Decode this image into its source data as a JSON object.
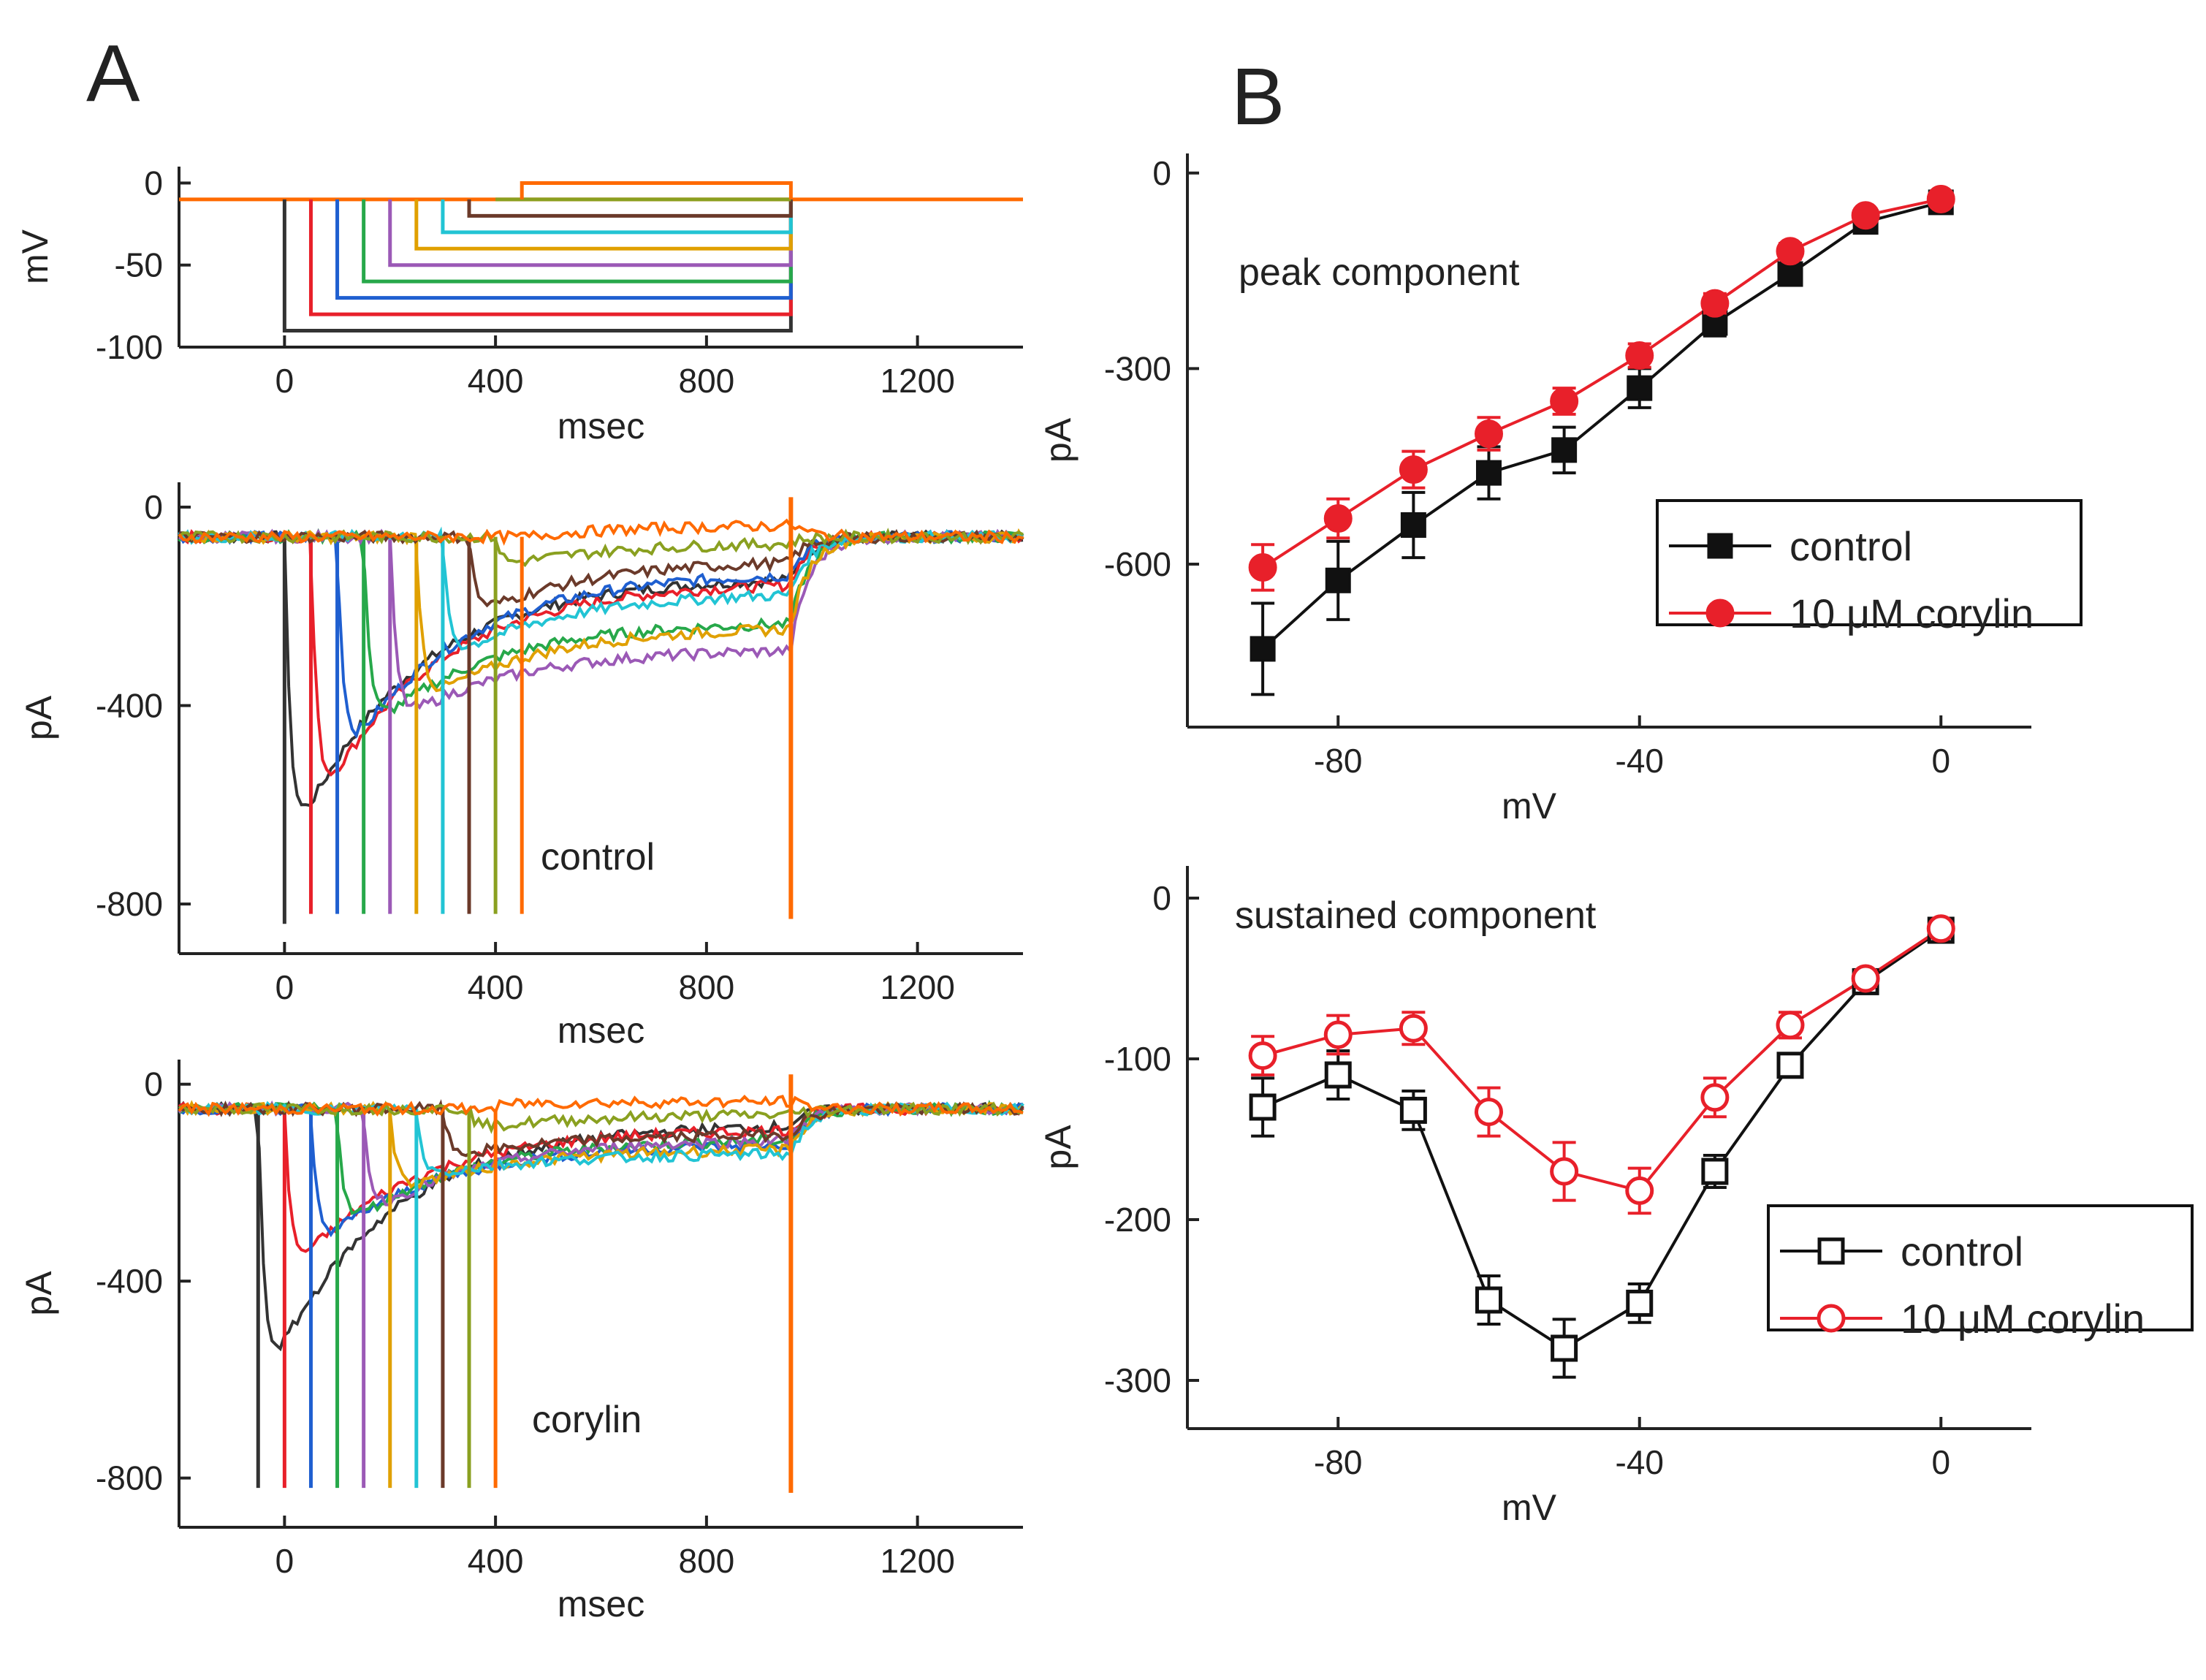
{
  "figure": {
    "panel_labels": [
      "A",
      "B"
    ]
  },
  "chart_data": [
    {
      "id": "A1",
      "type": "line",
      "description_label": "voltage protocol",
      "xlabel": "msec",
      "ylabel": "mV",
      "xlim": [
        -200,
        1400
      ],
      "ylim": [
        -100,
        10
      ],
      "xticks": [
        0,
        400,
        800,
        1200
      ],
      "yticks": [
        0,
        -50,
        -100
      ],
      "holding_mV": -10,
      "steps": [
        {
          "start": 0,
          "end": 960,
          "level": -90,
          "color": "#333333"
        },
        {
          "start": 50,
          "end": 960,
          "level": -80,
          "color": "#e8202a"
        },
        {
          "start": 100,
          "end": 960,
          "level": -70,
          "color": "#1f5fd0"
        },
        {
          "start": 150,
          "end": 960,
          "level": -60,
          "color": "#27a84a"
        },
        {
          "start": 200,
          "end": 960,
          "level": -50,
          "color": "#9b59b6"
        },
        {
          "start": 250,
          "end": 960,
          "level": -40,
          "color": "#e0a000"
        },
        {
          "start": 300,
          "end": 960,
          "level": -30,
          "color": "#22c4d4"
        },
        {
          "start": 350,
          "end": 960,
          "level": -20,
          "color": "#6b3a2a"
        },
        {
          "start": 400,
          "end": 960,
          "level": -10,
          "color": "#8aa020"
        },
        {
          "start": 450,
          "end": 960,
          "level": 0,
          "color": "#ff6a00"
        }
      ]
    },
    {
      "id": "A2",
      "type": "line",
      "xlabel": "msec",
      "ylabel": "pA",
      "annotation": "control",
      "xlim": [
        -200,
        1400
      ],
      "ylim": [
        -900,
        50
      ],
      "xticks": [
        0,
        400,
        800,
        1200
      ],
      "yticks": [
        0,
        -400,
        -800
      ],
      "baseline_pA": -60,
      "traces": [
        {
          "color": "#333333",
          "onset": 0,
          "peak": -720,
          "end": -140
        },
        {
          "color": "#e8202a",
          "onset": 50,
          "peak": -630,
          "end": -150
        },
        {
          "color": "#1f5fd0",
          "onset": 100,
          "peak": -530,
          "end": -130
        },
        {
          "color": "#27a84a",
          "onset": 150,
          "peak": -460,
          "end": -230
        },
        {
          "color": "#9b59b6",
          "onset": 200,
          "peak": -440,
          "end": -285
        },
        {
          "color": "#e0a000",
          "onset": 250,
          "peak": -400,
          "end": -240
        },
        {
          "color": "#22c4d4",
          "onset": 300,
          "peak": -310,
          "end": -170
        },
        {
          "color": "#6b3a2a",
          "onset": 350,
          "peak": -220,
          "end": -105
        },
        {
          "color": "#8aa020",
          "onset": 400,
          "peak": -120,
          "end": -70
        },
        {
          "color": "#ff6a00",
          "onset": 450,
          "peak": -60,
          "end": -35
        }
      ]
    },
    {
      "id": "A3",
      "type": "line",
      "xlabel": "msec",
      "ylabel": "pA",
      "annotation": "corylin",
      "xlim": [
        -200,
        1400
      ],
      "ylim": [
        -900,
        50
      ],
      "xticks": [
        0,
        400,
        800,
        1200
      ],
      "yticks": [
        0,
        -400,
        -800
      ],
      "baseline_pA": -50,
      "traces": [
        {
          "color": "#333333",
          "onset": -50,
          "peak": -640,
          "end": -80
        },
        {
          "color": "#e8202a",
          "onset": 0,
          "peak": -400,
          "end": -90
        },
        {
          "color": "#1f5fd0",
          "onset": 50,
          "peak": -340,
          "end": -120
        },
        {
          "color": "#27a84a",
          "onset": 100,
          "peak": -300,
          "end": -110
        },
        {
          "color": "#9b59b6",
          "onset": 150,
          "peak": -270,
          "end": -110
        },
        {
          "color": "#e0a000",
          "onset": 200,
          "peak": -220,
          "end": -130
        },
        {
          "color": "#22c4d4",
          "onset": 250,
          "peak": -190,
          "end": -140
        },
        {
          "color": "#6b3a2a",
          "onset": 300,
          "peak": -150,
          "end": -100
        },
        {
          "color": "#8aa020",
          "onset": 350,
          "peak": -90,
          "end": -60
        },
        {
          "color": "#ff6a00",
          "onset": 400,
          "peak": -40,
          "end": -35
        }
      ]
    },
    {
      "id": "B1",
      "type": "line",
      "annotation": "peak component",
      "xlabel": "mV",
      "ylabel": "pA",
      "xlim": [
        -100,
        12
      ],
      "ylim": [
        -850,
        30
      ],
      "xticks": [
        -80,
        -40,
        0
      ],
      "yticks": [
        0,
        -300,
        -600
      ],
      "x": [
        -90,
        -80,
        -70,
        -60,
        -50,
        -40,
        -30,
        -20,
        -10,
        0
      ],
      "series": [
        {
          "name": "control",
          "color": "#111111",
          "marker": "square-filled",
          "values": [
            -730,
            -625,
            -540,
            -460,
            -425,
            -330,
            -230,
            -155,
            -75,
            -45
          ],
          "errors": [
            70,
            60,
            50,
            40,
            35,
            30,
            20,
            15,
            10,
            8
          ]
        },
        {
          "name": "10 μM corylin",
          "color": "#e8202a",
          "marker": "circle-filled",
          "values": [
            -605,
            -530,
            -455,
            -400,
            -350,
            -280,
            -200,
            -120,
            -65,
            -40
          ],
          "errors": [
            35,
            30,
            28,
            25,
            20,
            18,
            15,
            12,
            10,
            8
          ]
        }
      ]
    },
    {
      "id": "B2",
      "type": "line",
      "annotation": "sustained component",
      "xlabel": "mV",
      "ylabel": "pA",
      "xlim": [
        -100,
        12
      ],
      "ylim": [
        -330,
        20
      ],
      "xticks": [
        -80,
        -40,
        0
      ],
      "yticks": [
        0,
        -100,
        -200,
        -300
      ],
      "x": [
        -90,
        -80,
        -70,
        -60,
        -50,
        -40,
        -30,
        -20,
        -10,
        0
      ],
      "series": [
        {
          "name": "control",
          "color": "#111111",
          "marker": "square-open",
          "values": [
            -130,
            -110,
            -132,
            -250,
            -280,
            -252,
            -170,
            -104,
            -52,
            -20
          ],
          "errors": [
            18,
            15,
            12,
            15,
            18,
            12,
            10,
            6,
            5,
            4
          ]
        },
        {
          "name": "10 μM corylin",
          "color": "#e8202a",
          "marker": "circle-open",
          "values": [
            -98,
            -85,
            -81,
            -133,
            -170,
            -182,
            -124,
            -79,
            -50,
            -19
          ],
          "errors": [
            12,
            12,
            10,
            15,
            18,
            14,
            12,
            8,
            5,
            4
          ]
        }
      ]
    }
  ]
}
